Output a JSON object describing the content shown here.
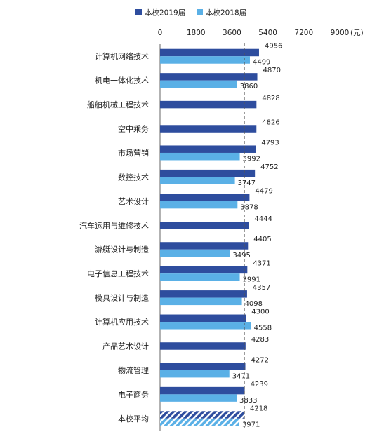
{
  "chart_data": {
    "type": "bar",
    "orientation": "horizontal",
    "categories": [
      "计算机网络技术",
      "机电一体化技术",
      "船舶机械工程技术",
      "空中乘务",
      "市场营销",
      "数控技术",
      "艺术设计",
      "汽车运用与维修技术",
      "游艇设计与制造",
      "电子信息工程技术",
      "模具设计与制造",
      "计算机应用技术",
      "产品艺术设计",
      "物流管理",
      "电子商务",
      "本校平均"
    ],
    "series": [
      {
        "name": "本校2019届",
        "color": "#2e4d9e",
        "values": [
          4956,
          4870,
          4828,
          4826,
          4793,
          4752,
          4479,
          4444,
          4405,
          4371,
          4357,
          4300,
          4283,
          4272,
          4239,
          4218
        ]
      },
      {
        "name": "本校2018届",
        "color": "#5ab0e6",
        "values": [
          4499,
          3860,
          null,
          null,
          3992,
          3747,
          3878,
          null,
          3495,
          3991,
          4098,
          4558,
          null,
          3471,
          3833,
          3971
        ]
      }
    ],
    "xticks": [
      0,
      1800,
      3600,
      5400,
      7200,
      9000
    ],
    "xunit": "(元)",
    "xlim": [
      0,
      9000
    ],
    "reference_line": {
      "value": 4218,
      "style": "dashed"
    },
    "highlight_category": "本校平均",
    "legend_position": "top-center"
  }
}
